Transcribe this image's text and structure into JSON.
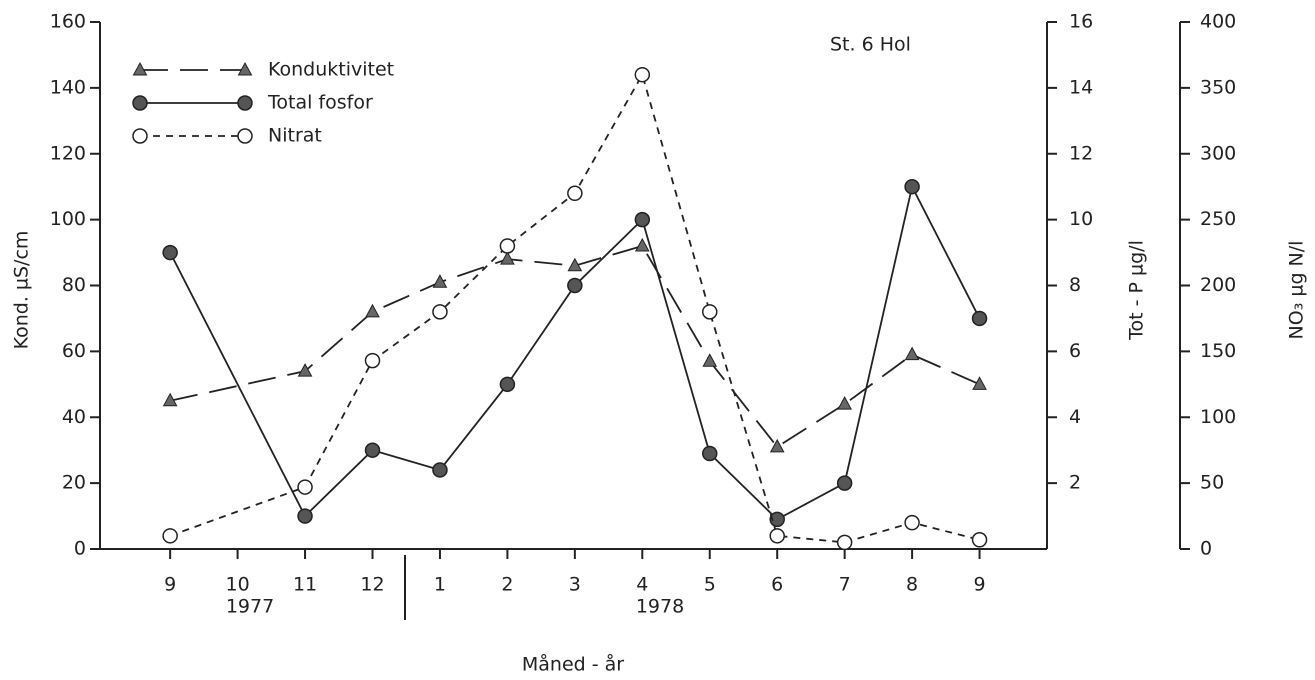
{
  "chart_data": {
    "type": "line",
    "title": "St. 6  Hol",
    "x_label": "Måned - år",
    "y_label": "Kond. µS/cm",
    "y2_label": "Tot - P  µg/l",
    "y3_label": "NO₃ µg N/l",
    "years": [
      "1977",
      "1978"
    ],
    "x": [
      0,
      2,
      3,
      4,
      5,
      6,
      7,
      8,
      9,
      10,
      11,
      12
    ],
    "xlim": [
      -1.04,
      13
    ],
    "xticks": [
      {
        "value": 0,
        "label": "9"
      },
      {
        "value": 1,
        "label": "10"
      },
      {
        "value": 2,
        "label": "11"
      },
      {
        "value": 3,
        "label": "12"
      },
      {
        "value": 4,
        "label": "1"
      },
      {
        "value": 5,
        "label": "2"
      },
      {
        "value": 6,
        "label": "3"
      },
      {
        "value": 7,
        "label": "4"
      },
      {
        "value": 8,
        "label": "5"
      },
      {
        "value": 9,
        "label": "6"
      },
      {
        "value": 10,
        "label": "7"
      },
      {
        "value": 11,
        "label": "8"
      },
      {
        "value": 12,
        "label": "9"
      }
    ],
    "ylim": [
      0,
      160
    ],
    "yticks": [
      0,
      20,
      40,
      60,
      80,
      100,
      120,
      140,
      160
    ],
    "y2lim": [
      0,
      16
    ],
    "y2ticks": [
      2,
      4,
      6,
      8,
      10,
      12,
      14,
      16
    ],
    "y3lim": [
      0,
      400
    ],
    "y3ticks": [
      0,
      50,
      100,
      150,
      200,
      250,
      300,
      350,
      400
    ],
    "series": [
      {
        "name": "Konduktivitet",
        "color": "#222",
        "marker": "triangle",
        "dash": "long",
        "values": [
          45,
          54,
          72,
          81,
          88,
          86,
          92,
          57,
          31,
          44,
          59,
          50
        ]
      },
      {
        "name": "Total  fosfor",
        "color": "#222",
        "marker": "filled-circle",
        "dash": "solid",
        "axis": "y2",
        "values": [
          9.0,
          1.0,
          3.0,
          2.4,
          5.0,
          8.0,
          10.0,
          2.9,
          0.9,
          2.0,
          11.0,
          7.0
        ]
      },
      {
        "name": "Nitrat",
        "color": "#222",
        "marker": "open-circle",
        "dash": "short",
        "axis": "y3",
        "values": [
          10,
          47,
          143,
          180,
          230,
          270,
          360,
          180,
          10,
          5,
          20,
          7
        ]
      }
    ]
  }
}
